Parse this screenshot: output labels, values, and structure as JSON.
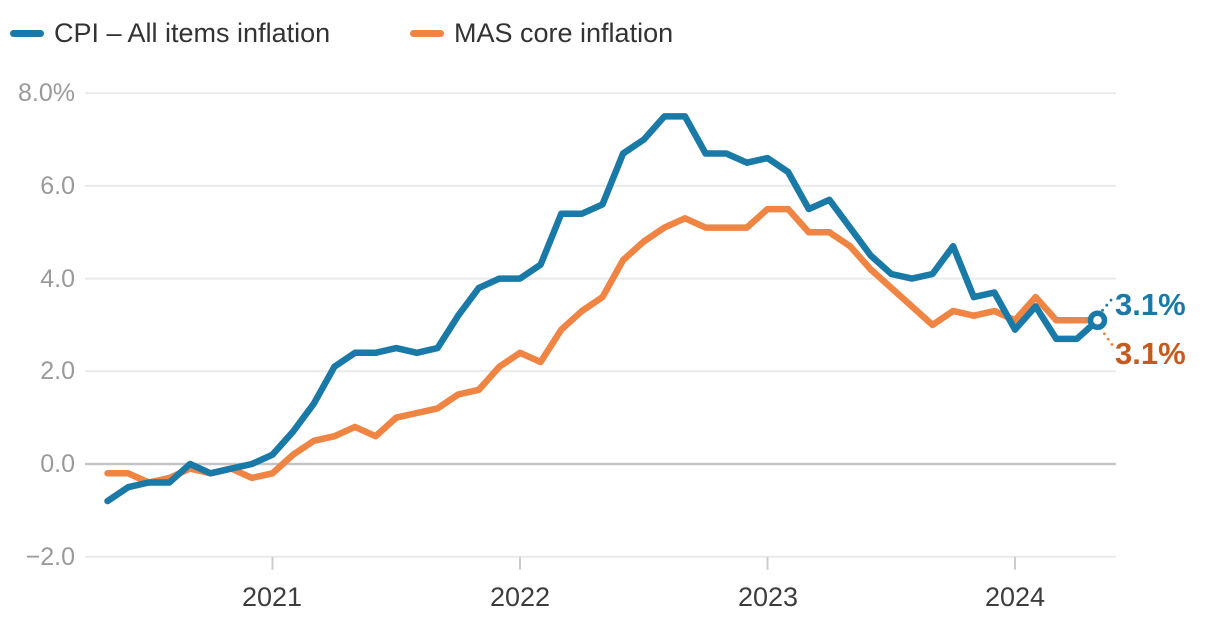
{
  "legend": {
    "items": [
      {
        "label": "CPI – All items inflation",
        "color": "#1a7aa7"
      },
      {
        "label": "MAS core inflation",
        "color": "#f08543"
      }
    ]
  },
  "colors": {
    "cpi_line": "#1a7aa7",
    "core_line": "#f08543",
    "cpi_end_label": "#1a7aa7",
    "core_end_label": "#c65a1e",
    "grid_line": "#eaeaea",
    "zero_line": "#c4c4c4",
    "tick_mark": "#cccccc",
    "y_axis_text": "#9a9a9a",
    "x_axis_text": "#3d3d3d",
    "legend_text": "#333333"
  },
  "chart_data": {
    "type": "line",
    "unit": "% year-on-year",
    "grid": "horizontal",
    "legend_position": "top-left",
    "x": {
      "frequency": "monthly",
      "start": "2020-05",
      "end": "2024-05",
      "labels": [
        "2020-05",
        "2020-06",
        "2020-07",
        "2020-08",
        "2020-09",
        "2020-10",
        "2020-11",
        "2020-12",
        "2021-01",
        "2021-02",
        "2021-03",
        "2021-04",
        "2021-05",
        "2021-06",
        "2021-07",
        "2021-08",
        "2021-09",
        "2021-10",
        "2021-11",
        "2021-12",
        "2022-01",
        "2022-02",
        "2022-03",
        "2022-04",
        "2022-05",
        "2022-06",
        "2022-07",
        "2022-08",
        "2022-09",
        "2022-10",
        "2022-11",
        "2022-12",
        "2023-01",
        "2023-02",
        "2023-03",
        "2023-04",
        "2023-05",
        "2023-06",
        "2023-07",
        "2023-08",
        "2023-09",
        "2023-10",
        "2023-11",
        "2023-12",
        "2024-01",
        "2024-02",
        "2024-03",
        "2024-04",
        "2024-05"
      ]
    },
    "series": [
      {
        "name": "CPI – All items inflation",
        "color": "#1a7aa7",
        "end_label": "3.1%",
        "end_label_color": "#1a7aa7",
        "values": [
          -0.8,
          -0.5,
          -0.4,
          -0.4,
          0.0,
          -0.2,
          -0.1,
          0.0,
          0.2,
          0.7,
          1.3,
          2.1,
          2.4,
          2.4,
          2.5,
          2.4,
          2.5,
          3.2,
          3.8,
          4.0,
          4.0,
          4.3,
          5.4,
          5.4,
          5.6,
          6.7,
          7.0,
          7.5,
          7.5,
          6.7,
          6.7,
          6.5,
          6.6,
          6.3,
          5.5,
          5.7,
          5.1,
          4.5,
          4.1,
          4.0,
          4.1,
          4.7,
          3.6,
          3.7,
          2.9,
          3.4,
          2.7,
          2.7,
          3.1
        ]
      },
      {
        "name": "MAS core inflation",
        "color": "#f08543",
        "end_label": "3.1%",
        "end_label_color": "#c65a1e",
        "values": [
          -0.2,
          -0.2,
          -0.4,
          -0.3,
          -0.1,
          -0.2,
          -0.1,
          -0.3,
          -0.2,
          0.2,
          0.5,
          0.6,
          0.8,
          0.6,
          1.0,
          1.1,
          1.2,
          1.5,
          1.6,
          2.1,
          2.4,
          2.2,
          2.9,
          3.3,
          3.6,
          4.4,
          4.8,
          5.1,
          5.3,
          5.1,
          5.1,
          5.1,
          5.5,
          5.5,
          5.0,
          5.0,
          4.7,
          4.2,
          3.8,
          3.4,
          3.0,
          3.3,
          3.2,
          3.3,
          3.1,
          3.6,
          3.1,
          3.1,
          3.1
        ]
      }
    ],
    "y_axis": {
      "range": [
        -2,
        8
      ],
      "ticks": [
        {
          "value": 8,
          "label": "8.0%"
        },
        {
          "value": 6,
          "label": "6.0"
        },
        {
          "value": 4,
          "label": "4.0"
        },
        {
          "value": 2,
          "label": "2.0"
        },
        {
          "value": 0,
          "label": "0.0"
        },
        {
          "value": -2,
          "label": "−2.0"
        }
      ]
    },
    "x_axis": {
      "ticks": [
        {
          "label": "2021",
          "month_index": 8
        },
        {
          "label": "2022",
          "month_index": 20
        },
        {
          "label": "2023",
          "month_index": 32
        },
        {
          "label": "2024",
          "month_index": 44
        }
      ]
    }
  }
}
